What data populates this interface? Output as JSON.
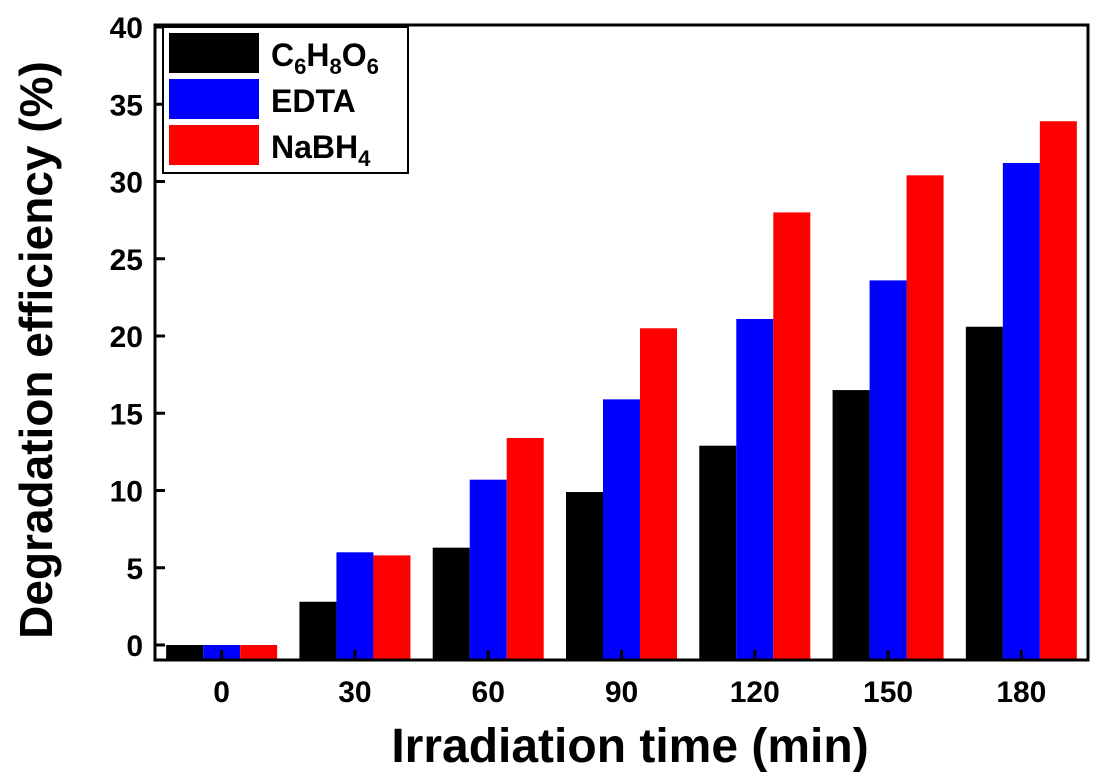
{
  "chart_data": {
    "type": "bar",
    "title": "",
    "xlabel": "Irradiation time (min)",
    "ylabel": "Degradation efficiency (%)",
    "categories": [
      "0",
      "30",
      "60",
      "90",
      "120",
      "150",
      "180"
    ],
    "ylim": [
      0,
      40
    ],
    "yticks": [
      "0",
      "5",
      "10",
      "15",
      "20",
      "25",
      "30",
      "35",
      "40"
    ],
    "grid": false,
    "legend_position": "top-left",
    "series": [
      {
        "name": "C6H8O6",
        "label_parts": [
          [
            "C",
            ""
          ],
          [
            "6",
            "sub"
          ],
          [
            "H",
            ""
          ],
          [
            "8",
            "sub"
          ],
          [
            "O",
            ""
          ],
          [
            "6",
            "sub"
          ]
        ],
        "color": "#000000",
        "values": [
          0.0,
          2.8,
          6.3,
          9.9,
          12.9,
          16.5,
          20.6
        ]
      },
      {
        "name": "EDTA",
        "label_parts": [
          [
            "EDTA",
            ""
          ]
        ],
        "color": "#0000ff",
        "values": [
          0.0,
          6.0,
          10.7,
          15.9,
          21.1,
          23.6,
          31.2
        ]
      },
      {
        "name": "NaBH4",
        "label_parts": [
          [
            "NaBH",
            ""
          ],
          [
            "4",
            "sub"
          ]
        ],
        "color": "#ff0000",
        "values": [
          0.0,
          5.8,
          13.4,
          20.5,
          28.0,
          30.4,
          33.9
        ]
      }
    ]
  }
}
